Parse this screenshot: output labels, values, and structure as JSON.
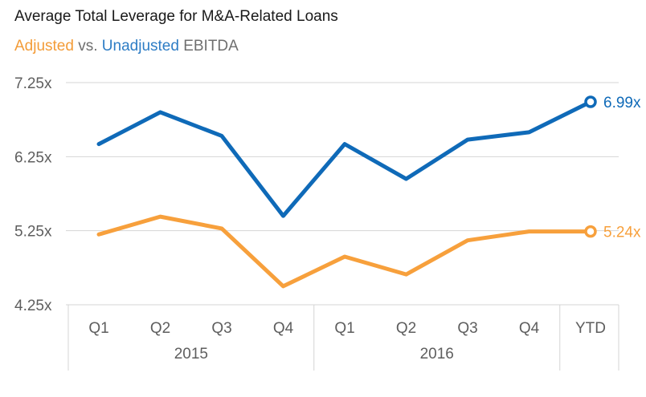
{
  "header": {
    "title": "Average Total Leverage for M&A-Related Loans",
    "subtitle_adjusted": "Adjusted",
    "subtitle_vs": " vs. ",
    "subtitle_unadjusted": "Unadjusted",
    "subtitle_tail": " EBITDA"
  },
  "colors": {
    "adjusted": "#f7a03c",
    "unadjusted": "#0f6ab8",
    "grid": "#d4d4d4",
    "text": "#5e5e5e"
  },
  "chart_data": {
    "type": "line",
    "categories": [
      "Q1",
      "Q2",
      "Q3",
      "Q4",
      "Q1",
      "Q2",
      "Q3",
      "Q4",
      "YTD"
    ],
    "groups": [
      {
        "label": "2015",
        "span": 4
      },
      {
        "label": "2016",
        "span": 4
      },
      {
        "label": "",
        "span": 1
      }
    ],
    "ylim": [
      4.25,
      7.25
    ],
    "yticks": [
      {
        "value": 7.25,
        "label": "7.25x"
      },
      {
        "value": 6.25,
        "label": "6.25x"
      },
      {
        "value": 5.25,
        "label": "5.25x"
      },
      {
        "value": 4.25,
        "label": "4.25x"
      }
    ],
    "series": [
      {
        "name": "Unadjusted",
        "key": "unadjusted",
        "values": [
          6.42,
          6.85,
          6.53,
          5.45,
          6.42,
          5.95,
          6.48,
          6.58,
          6.99
        ],
        "end_label": "6.99x"
      },
      {
        "name": "Adjusted",
        "key": "adjusted",
        "values": [
          5.2,
          5.44,
          5.28,
          4.5,
          4.9,
          4.66,
          5.12,
          5.24,
          5.24
        ],
        "end_label": "5.24x"
      }
    ],
    "grid": true
  }
}
